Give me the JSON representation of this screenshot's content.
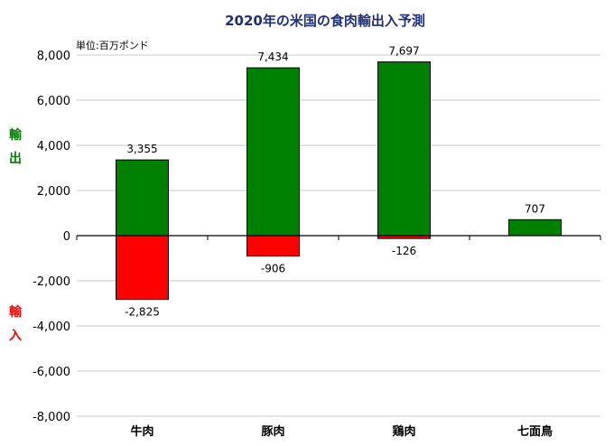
{
  "chart_data": {
    "type": "bar",
    "title": "2020年の米国の食肉輸出入予測",
    "unit_label": "単位:百万ポンド",
    "categories": [
      "牛肉",
      "豚肉",
      "鶏肉",
      "七面鳥"
    ],
    "series": [
      {
        "name": "輸出",
        "color": "#008000",
        "values": [
          3355,
          7434,
          7697,
          707
        ]
      },
      {
        "name": "輸入",
        "color": "#ff0000",
        "values": [
          -2825,
          -906,
          -126,
          null
        ]
      }
    ],
    "data_labels": {
      "export": [
        "3,355",
        "7,434",
        "7,697",
        "707"
      ],
      "import": [
        "-2,825",
        "-906",
        "-126",
        ""
      ]
    },
    "y_ticks": [
      "8,000",
      "6,000",
      "4,000",
      "2,000",
      "0",
      "-2,000",
      "-4,000",
      "-6,000",
      "-8,000"
    ],
    "ylim": [
      -8000,
      8000
    ],
    "y_step": 2000,
    "grid": true,
    "side_labels": {
      "export": {
        "chars": [
          "輸",
          "出"
        ],
        "color": "#008000"
      },
      "import": {
        "chars": [
          "輸",
          "入"
        ],
        "color": "#ff0000"
      }
    }
  }
}
